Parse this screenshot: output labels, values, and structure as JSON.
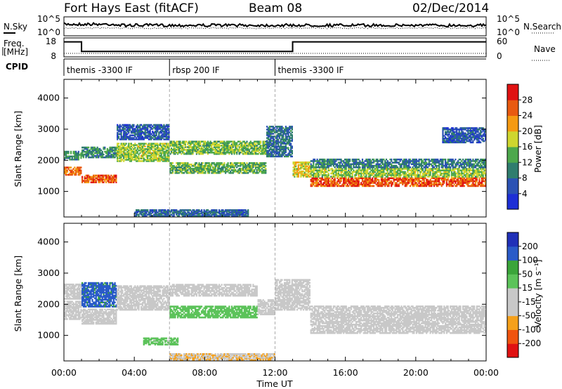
{
  "header": {
    "station": "Fort Hays East (fitACF)",
    "beam": "Beam 08",
    "date": "02/Dec/2014"
  },
  "nsky_panel": {
    "left_label": "N.Sky",
    "right_label": "N.Search",
    "left_ticks": [
      "10^5",
      "10^0"
    ],
    "right_ticks": [
      "10^5",
      "10^0"
    ]
  },
  "freq_panel": {
    "left_label_line1": "Freq.",
    "left_label_line2": "[MHz]",
    "right_label": "Nave",
    "left_ticks": [
      "18",
      "8"
    ],
    "right_ticks": [
      "60",
      "0"
    ],
    "freq_mhz_steps": [
      [
        0.0,
        16.5
      ],
      [
        1.0,
        10.8
      ],
      [
        13.0,
        16.5
      ],
      [
        24.0,
        16.5
      ]
    ],
    "nave_level": 10
  },
  "cpid_panel": {
    "label": "CPID",
    "segments": [
      {
        "start_hour": 0.0,
        "end_hour": 6.0,
        "name": "themis -3300 IF"
      },
      {
        "start_hour": 6.0,
        "end_hour": 12.0,
        "name": "rbsp 200 IF"
      },
      {
        "start_hour": 12.0,
        "end_hour": 24.0,
        "name": "themis -3300 IF"
      }
    ]
  },
  "chart_data": [
    {
      "type": "heatmap",
      "panel": "power",
      "ylabel": "Slant Range [km]",
      "yticks": [
        "1000",
        "2000",
        "3000",
        "4000"
      ],
      "ylim": [
        180,
        4600
      ],
      "xlim": [
        0,
        24
      ],
      "colorbar": {
        "label": "Power [dB]",
        "tick_labels": [
          "4",
          "8",
          "12",
          "16",
          "20",
          "24",
          "28"
        ],
        "colors": [
          "#1d2fd6",
          "#2b52b4",
          "#2f7d6e",
          "#4da84c",
          "#cfd62f",
          "#f59a12",
          "#e85a10",
          "#e01212"
        ],
        "range": [
          0,
          30
        ]
      },
      "bands": [
        {
          "t0": 0.0,
          "t1": 1.0,
          "r_center": 1650,
          "half_width": 140,
          "value": 23
        },
        {
          "t0": 0.0,
          "t1": 1.0,
          "r_center": 2150,
          "half_width": 150,
          "value": 11
        },
        {
          "t0": 1.0,
          "t1": 3.0,
          "r_center": 1400,
          "half_width": 130,
          "value": 24
        },
        {
          "t0": 1.0,
          "t1": 3.0,
          "r_center": 2250,
          "half_width": 180,
          "value": 10
        },
        {
          "t0": 3.0,
          "t1": 6.0,
          "r_center": 2250,
          "half_width": 300,
          "value": 15
        },
        {
          "t0": 3.0,
          "t1": 6.0,
          "r_center": 2900,
          "half_width": 250,
          "value": 6
        },
        {
          "t0": 6.0,
          "t1": 11.5,
          "r_center": 2400,
          "half_width": 220,
          "value": 14
        },
        {
          "t0": 6.0,
          "t1": 11.5,
          "r_center": 1750,
          "half_width": 180,
          "value": 13
        },
        {
          "t0": 11.5,
          "t1": 13.0,
          "r_center": 2600,
          "half_width": 500,
          "value": 8
        },
        {
          "t0": 13.0,
          "t1": 14.0,
          "r_center": 1700,
          "half_width": 250,
          "value": 18
        },
        {
          "t0": 14.0,
          "t1": 24.0,
          "r_center": 1300,
          "half_width": 150,
          "value": 25
        },
        {
          "t0": 14.0,
          "t1": 24.0,
          "r_center": 1600,
          "half_width": 150,
          "value": 15
        },
        {
          "t0": 14.0,
          "t1": 24.0,
          "r_center": 1900,
          "half_width": 150,
          "value": 9
        },
        {
          "t0": 21.5,
          "t1": 24.0,
          "r_center": 2800,
          "half_width": 250,
          "value": 6
        },
        {
          "t0": 4.0,
          "t1": 10.5,
          "r_center": 300,
          "half_width": 110,
          "value": 7
        }
      ]
    },
    {
      "type": "heatmap",
      "panel": "velocity",
      "ylabel": "Slant Range [km]",
      "xlabel": "Time UT",
      "yticks": [
        "1000",
        "2000",
        "3000",
        "4000"
      ],
      "xticks": [
        "00:00",
        "04:00",
        "08:00",
        "12:00",
        "16:00",
        "20:00",
        "00:00"
      ],
      "ylim": [
        180,
        4600
      ],
      "xlim": [
        0,
        24
      ],
      "colorbar": {
        "label": "Velocity [m s⁻¹]",
        "tick_labels": [
          "-200",
          "-100",
          "-50",
          "-15",
          "15",
          "50",
          "100",
          "200"
        ],
        "colors": [
          "#e01212",
          "#f0540f",
          "#f5a01a",
          "#c8c8c8",
          "#c8c8c8",
          "#5cc35a",
          "#3aa53a",
          "#2a5bc8",
          "#2030b8"
        ],
        "range": [
          -250,
          250
        ]
      },
      "bands": [
        {
          "t0": 0.0,
          "t1": 1.0,
          "r_center": 1800,
          "half_width": 300,
          "value": -30
        },
        {
          "t0": 0.0,
          "t1": 1.0,
          "r_center": 2400,
          "half_width": 250,
          "value": 0
        },
        {
          "t0": 1.0,
          "t1": 3.0,
          "r_center": 2300,
          "half_width": 400,
          "value": 150
        },
        {
          "t0": 1.0,
          "t1": 3.0,
          "r_center": 1600,
          "half_width": 250,
          "value": 0
        },
        {
          "t0": 3.0,
          "t1": 6.0,
          "r_center": 2200,
          "half_width": 400,
          "value": 0
        },
        {
          "t0": 6.0,
          "t1": 11.0,
          "r_center": 2450,
          "half_width": 200,
          "value": 0
        },
        {
          "t0": 6.0,
          "t1": 11.0,
          "r_center": 1750,
          "half_width": 200,
          "value": 45
        },
        {
          "t0": 11.0,
          "t1": 12.0,
          "r_center": 1900,
          "half_width": 250,
          "value": -60
        },
        {
          "t0": 12.0,
          "t1": 14.0,
          "r_center": 2300,
          "half_width": 500,
          "value": 0
        },
        {
          "t0": 14.0,
          "t1": 24.0,
          "r_center": 1500,
          "half_width": 450,
          "value": 0
        },
        {
          "t0": 4.5,
          "t1": 6.5,
          "r_center": 800,
          "half_width": 120,
          "value": 40
        },
        {
          "t0": 6.0,
          "t1": 12.0,
          "r_center": 300,
          "half_width": 110,
          "value": -80
        }
      ]
    }
  ]
}
